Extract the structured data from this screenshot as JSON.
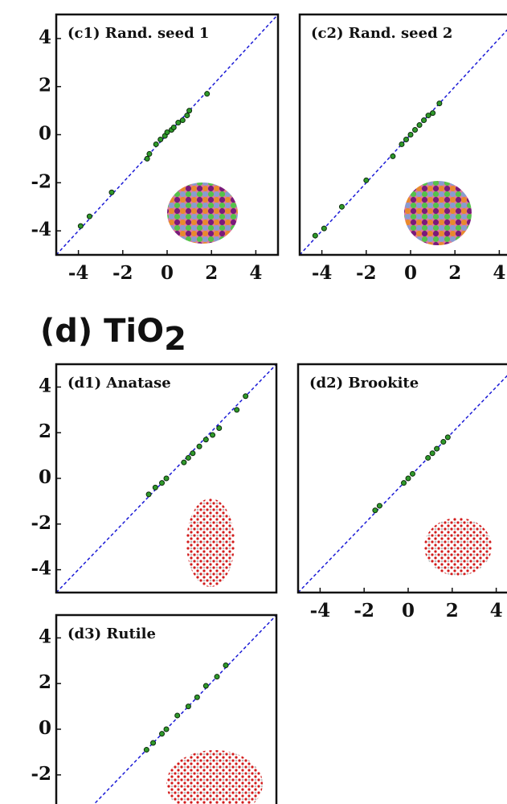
{
  "section_title": {
    "text": "(d) TiO",
    "subscript": "2"
  },
  "chart_data": [
    {
      "type": "scatter",
      "title": "(c1) Rand. seed 1",
      "color": "#2f9a2a",
      "x": [
        -3.9,
        -3.5,
        -2.5,
        -0.9,
        -0.8,
        -0.5,
        -0.3,
        -0.1,
        0,
        0.2,
        0.3,
        0.5,
        0.7,
        0.9,
        1.0,
        1.8
      ],
      "y": [
        -3.8,
        -3.4,
        -2.4,
        -1.0,
        -0.8,
        -0.4,
        -0.2,
        -0.05,
        0.1,
        0.2,
        0.3,
        0.5,
        0.6,
        0.8,
        1.0,
        1.7
      ],
      "xlim": [
        -5,
        5
      ],
      "ylim": [
        -5,
        5
      ],
      "xticks": [
        -4,
        -2,
        0,
        2,
        4
      ],
      "yticks": [
        -4,
        -2,
        0,
        2,
        4
      ]
    },
    {
      "type": "scatter",
      "title": "(c2) Rand. seed 2",
      "color": "#2f9a2a",
      "x": [
        -4.3,
        -3.9,
        -3.1,
        -2.0,
        -0.8,
        -0.4,
        -0.2,
        0,
        0.2,
        0.4,
        0.6,
        0.8,
        1.0,
        1.3
      ],
      "y": [
        -4.2,
        -3.9,
        -3.0,
        -1.9,
        -0.9,
        -0.4,
        -0.2,
        0,
        0.2,
        0.4,
        0.6,
        0.8,
        0.9,
        1.3
      ],
      "xlim": [
        -5,
        5
      ],
      "ylim": [
        -5,
        5
      ],
      "xticks": [
        -4,
        -2,
        0,
        2,
        4
      ]
    },
    {
      "type": "scatter",
      "title": "(d1) Anatase",
      "color": "#2f9a2a",
      "x": [
        -0.8,
        -0.5,
        -0.2,
        0,
        0.8,
        1.0,
        1.2,
        1.5,
        1.8,
        2.1,
        2.4,
        3.2,
        3.6
      ],
      "y": [
        -0.7,
        -0.4,
        -0.2,
        0,
        0.7,
        0.9,
        1.1,
        1.4,
        1.7,
        1.9,
        2.2,
        3.0,
        3.6
      ],
      "xlim": [
        -5,
        5
      ],
      "ylim": [
        -5,
        5
      ],
      "yticks": [
        -4,
        -2,
        0,
        2,
        4
      ]
    },
    {
      "type": "scatter",
      "title": "(d2) Brookite",
      "color": "#2f9a2a",
      "x": [
        -1.5,
        -1.3,
        -0.2,
        0,
        0.2,
        0.9,
        1.1,
        1.3,
        1.6,
        1.8
      ],
      "y": [
        -1.4,
        -1.2,
        -0.2,
        0,
        0.2,
        0.9,
        1.1,
        1.3,
        1.6,
        1.8
      ],
      "xlim": [
        -5,
        5
      ],
      "ylim": [
        -5,
        5
      ],
      "xticks": [
        -4,
        -2,
        0,
        2,
        4
      ]
    },
    {
      "type": "scatter",
      "title": "(d3) Rutile",
      "color": "#2f9a2a",
      "x": [
        -0.9,
        -0.6,
        -0.2,
        0,
        0.5,
        1.0,
        1.4,
        1.8,
        2.3,
        2.7
      ],
      "y": [
        -0.9,
        -0.6,
        -0.2,
        0,
        0.6,
        1.0,
        1.4,
        1.9,
        2.3,
        2.8
      ],
      "xlim": [
        -5,
        5
      ],
      "ylim": [
        -5,
        5
      ],
      "yticks": [
        -2,
        0,
        2,
        4
      ]
    }
  ]
}
